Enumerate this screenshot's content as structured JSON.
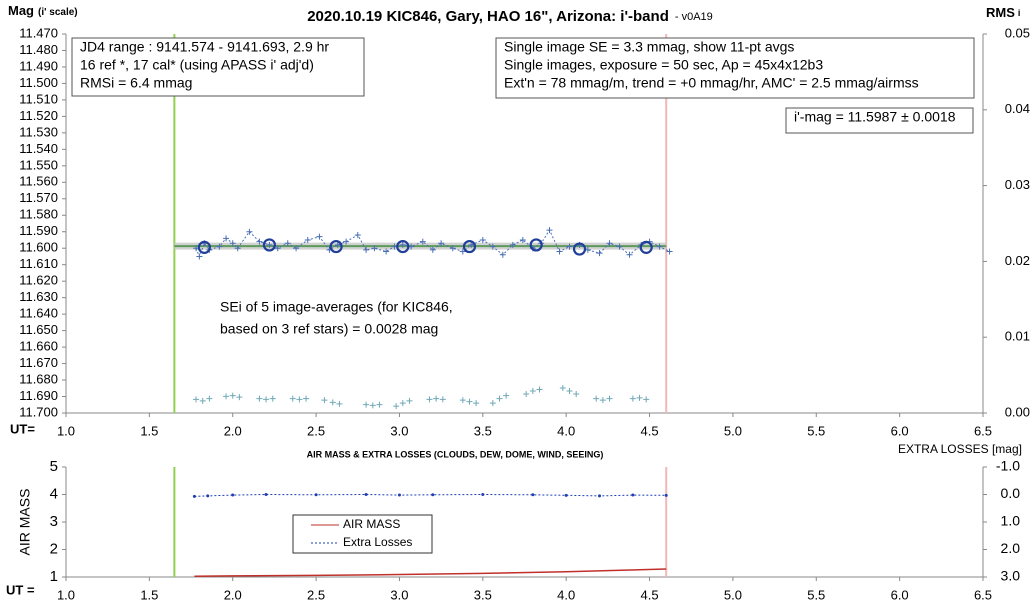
{
  "chart_data": [
    {
      "type": "scatter",
      "title": "2020.10.19 KIC846, Gary, HAO 16\", Arizona: i'-band",
      "subtitle": "- v0A19",
      "y_label": "Mag",
      "y_label_note": "(i' scale)",
      "y2_label": "RMS",
      "y2_label_note": "i",
      "x_label": "UT=",
      "xlim": [
        1.0,
        6.5
      ],
      "xticks": [
        {
          "value": 1.0,
          "label": "1.0"
        },
        1.5,
        {
          "value": 2.0,
          "label": "2.0"
        },
        2.5,
        {
          "value": 3.0,
          "label": "3.0"
        },
        3.5,
        {
          "value": 4.0,
          "label": "4.0"
        },
        4.5,
        {
          "value": 5.0,
          "label": "5.0"
        },
        5.5,
        {
          "value": 6.0,
          "label": "6.0"
        },
        6.5
      ],
      "ylim": [
        11.7,
        11.47
      ],
      "yticks": [
        {
          "value": 11.47,
          "label": "11.470"
        },
        {
          "value": 11.48,
          "label": "11.480"
        },
        {
          "value": 11.49,
          "label": "11.490"
        },
        {
          "value": 11.5,
          "label": "11.500"
        },
        {
          "value": 11.51,
          "label": "11.510"
        },
        {
          "value": 11.52,
          "label": "11.520"
        },
        {
          "value": 11.53,
          "label": "11.530"
        },
        {
          "value": 11.54,
          "label": "11.540"
        },
        {
          "value": 11.55,
          "label": "11.550"
        },
        {
          "value": 11.56,
          "label": "11.560"
        },
        {
          "value": 11.57,
          "label": "11.570"
        },
        {
          "value": 11.58,
          "label": "11.580"
        },
        {
          "value": 11.59,
          "label": "11.590"
        },
        {
          "value": 11.6,
          "label": "11.600"
        },
        {
          "value": 11.61,
          "label": "11.610"
        },
        {
          "value": 11.62,
          "label": "11.620"
        },
        {
          "value": 11.63,
          "label": "11.630"
        },
        {
          "value": 11.64,
          "label": "11.640"
        },
        {
          "value": 11.65,
          "label": "11.650"
        },
        {
          "value": 11.66,
          "label": "11.660"
        },
        {
          "value": 11.67,
          "label": "11.670"
        },
        {
          "value": 11.68,
          "label": "11.680"
        },
        {
          "value": 11.69,
          "label": "11.690"
        },
        {
          "value": 11.7,
          "label": "11.700"
        }
      ],
      "y2lim": [
        0,
        0.05
      ],
      "y2ticks": [
        {
          "value": 0,
          "label": "0.00"
        },
        0.01,
        0.02,
        0.03,
        0.04,
        0.05
      ],
      "vlines": [
        {
          "x": 1.65,
          "color": "#92d050"
        },
        {
          "x": 4.6,
          "color": "#f4b6b6"
        }
      ],
      "mean_line": 11.5987,
      "mean_color": "#5b9b5b",
      "annotations": [
        {
          "lines": [
            "JD4 range : 9141.574 - 9141.693, 2.9  hr",
            "16 ref *, 17 cal* (using APASS i' adj'd)",
            "RMSi = 6.4 mmag"
          ]
        },
        {
          "lines": [
            "Single image SE = 3.3 mmag, show 11-pt avgs",
            "Single images, exposure = 50 sec, Ap = 45x4x12b3",
            "Ext'n = 78 mmag/m, trend = +0 mmag/hr, AMC' = 2.5 mmag/airmss"
          ]
        },
        {
          "lines": [
            "i'-mag = 11.5987 ± 0.0018"
          ]
        },
        {
          "lines": [
            "SEi of 5 image-averages (for KIC846,",
            "based on 3 ref stars) = 0.0028 mag"
          ]
        }
      ],
      "series": [
        {
          "color": "#4a6fb5",
          "marker": "plus",
          "line": "dotted",
          "x": [
            1.78,
            1.8,
            1.83,
            1.86,
            1.92,
            1.96,
            2.0,
            2.03,
            2.1,
            2.16,
            2.22,
            2.27,
            2.33,
            2.38,
            2.45,
            2.52,
            2.58,
            2.63,
            2.68,
            2.75,
            2.8,
            2.85,
            2.92,
            2.97,
            3.02,
            3.07,
            3.14,
            3.2,
            3.25,
            3.32,
            3.38,
            3.43,
            3.5,
            3.56,
            3.62,
            3.68,
            3.74,
            3.8,
            3.85,
            3.9,
            3.96,
            4.02,
            4.08,
            4.13,
            4.2,
            4.26,
            4.32,
            4.38,
            4.45,
            4.5,
            4.56,
            4.62
          ],
          "values": [
            11.6,
            11.605,
            11.597,
            11.601,
            11.599,
            11.594,
            11.597,
            11.6,
            11.59,
            11.596,
            11.598,
            11.6,
            11.597,
            11.6,
            11.595,
            11.593,
            11.601,
            11.598,
            11.596,
            11.592,
            11.601,
            11.6,
            11.602,
            11.599,
            11.598,
            11.599,
            11.596,
            11.601,
            11.597,
            11.6,
            11.602,
            11.598,
            11.595,
            11.599,
            11.604,
            11.598,
            11.595,
            11.6,
            11.597,
            11.589,
            11.602,
            11.599,
            11.598,
            11.601,
            11.603,
            11.597,
            11.599,
            11.604,
            11.598,
            11.596,
            11.599,
            11.602
          ]
        },
        {
          "color": "#1f3f99",
          "marker": "circle",
          "x": [
            1.83,
            2.22,
            2.62,
            3.02,
            3.42,
            3.82,
            4.08,
            4.48
          ],
          "values": [
            11.5995,
            11.598,
            11.599,
            11.599,
            11.599,
            11.598,
            11.6005,
            11.5995
          ]
        },
        {
          "color": "#6fa8b8",
          "marker": "plus",
          "axis": "y2",
          "x": [
            1.78,
            1.82,
            1.86,
            1.96,
            2.0,
            2.04,
            2.16,
            2.2,
            2.24,
            2.36,
            2.4,
            2.44,
            2.55,
            2.6,
            2.64,
            2.8,
            2.84,
            2.88,
            2.98,
            3.02,
            3.06,
            3.18,
            3.22,
            3.26,
            3.38,
            3.42,
            3.46,
            3.56,
            3.6,
            3.64,
            3.76,
            3.8,
            3.84,
            3.98,
            4.02,
            4.06,
            4.18,
            4.22,
            4.26,
            4.4,
            4.44,
            4.48
          ],
          "values": [
            0.0018,
            0.0016,
            0.0019,
            0.0022,
            0.0023,
            0.0021,
            0.0019,
            0.0018,
            0.0019,
            0.0019,
            0.0018,
            0.0019,
            0.0017,
            0.0014,
            0.0012,
            0.0011,
            0.001,
            0.0011,
            0.0009,
            0.0013,
            0.0016,
            0.0018,
            0.0019,
            0.0018,
            0.0017,
            0.0015,
            0.0013,
            0.0013,
            0.0019,
            0.0023,
            0.0025,
            0.0029,
            0.0031,
            0.0033,
            0.0029,
            0.0025,
            0.0019,
            0.0017,
            0.0019,
            0.0019,
            0.002,
            0.0018
          ]
        }
      ]
    },
    {
      "type": "line",
      "title": "AIR MASS & EXTRA LOSSES (CLOUDS, DEW, DOME, WIND, SEEING)",
      "y_label": "AIR MASS",
      "y2_label": "EXTRA LOSSES [mag]",
      "x_label": "UT =",
      "xlim": [
        1.0,
        6.5
      ],
      "xticks": [
        {
          "value": 1.0,
          "label": "1.0"
        },
        1.5,
        {
          "value": 2.0,
          "label": "2.0"
        },
        2.5,
        {
          "value": 3.0,
          "label": "3.0"
        },
        3.5,
        {
          "value": 4.0,
          "label": "4.0"
        },
        4.5,
        {
          "value": 5.0,
          "label": "5.0"
        },
        5.5,
        {
          "value": 6.0,
          "label": "6.0"
        },
        6.5
      ],
      "ylim": [
        1,
        5
      ],
      "yticks": [
        1,
        2,
        3,
        4,
        5
      ],
      "y2lim": [
        3,
        -1
      ],
      "y2ticks": [
        {
          "value": -1,
          "label": "-1.0"
        },
        {
          "value": 0,
          "label": "0.0"
        },
        {
          "value": 1,
          "label": "1.0"
        },
        {
          "value": 2,
          "label": "2.0"
        },
        {
          "value": 3,
          "label": "3.0"
        }
      ],
      "vlines": [
        {
          "x": 1.65,
          "color": "#92d050"
        },
        {
          "x": 4.6,
          "color": "#f4b6b6"
        }
      ],
      "legend": true,
      "series": [
        {
          "name": "AIR MASS",
          "color": "#c0302a",
          "line": "solid",
          "x": [
            1.77,
            2.0,
            2.5,
            3.0,
            3.5,
            4.0,
            4.3,
            4.6
          ],
          "values": [
            1.03,
            1.04,
            1.06,
            1.09,
            1.13,
            1.19,
            1.24,
            1.29
          ]
        },
        {
          "name": "Extra Losses",
          "color": "#1f3fb0",
          "line": "dotted",
          "marker": "dot",
          "axis": "y2",
          "x": [
            1.77,
            1.85,
            2.0,
            2.2,
            2.5,
            2.8,
            3.0,
            3.2,
            3.5,
            3.8,
            4.0,
            4.2,
            4.4,
            4.6
          ],
          "values": [
            0.07,
            0.05,
            0.02,
            0.0,
            0.01,
            0.0,
            0.02,
            0.01,
            0.0,
            0.01,
            0.03,
            0.05,
            0.02,
            0.03
          ]
        }
      ]
    }
  ]
}
